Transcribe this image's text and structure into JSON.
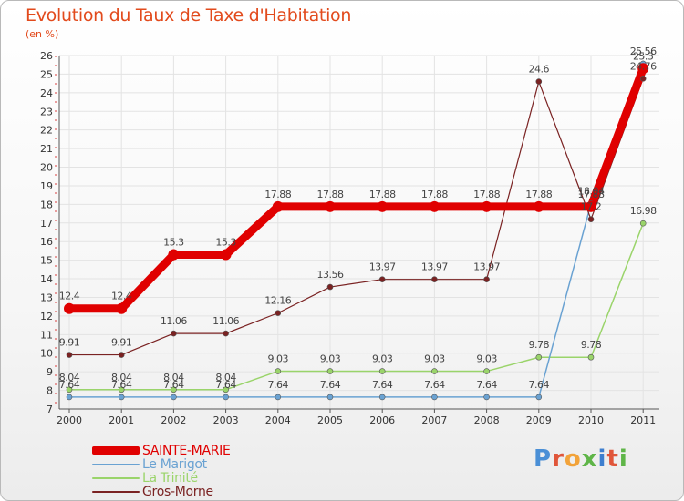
{
  "header": {
    "title": "Evolution du Taux de Taxe d'Habitation",
    "unit": "(en %)"
  },
  "logo": {
    "text": "Proxiti",
    "colors": [
      "#4a8fd6",
      "#e0563a",
      "#f2a33a",
      "#5fb548",
      "#3e7fcf",
      "#e0563a",
      "#5fb548"
    ]
  },
  "chart_data": {
    "type": "line",
    "title": "Evolution du Taux de Taxe d'Habitation",
    "ylabel": "(en %)",
    "xlabel": "",
    "ylim": [
      7,
      26
    ],
    "yticks": [
      7,
      8,
      9,
      10,
      11,
      12,
      13,
      14,
      15,
      16,
      17,
      18,
      19,
      20,
      21,
      22,
      23,
      24,
      25,
      26
    ],
    "x": [
      "2000",
      "2001",
      "2002",
      "2003",
      "2004",
      "2005",
      "2006",
      "2007",
      "2008",
      "2009",
      "2010",
      "2011"
    ],
    "grid": true,
    "legend_position": "bottom-left",
    "series": [
      {
        "name": "SAINTE-MARIE",
        "color": "#e00000",
        "width": 9,
        "values": [
          12.4,
          12.4,
          15.3,
          15.3,
          17.88,
          17.88,
          17.88,
          17.88,
          17.88,
          17.88,
          17.88,
          25.3
        ],
        "labels": [
          "12.4",
          "12.4",
          "15.3",
          "15.3",
          "17.88",
          "17.88",
          "17.88",
          "17.88",
          "17.88",
          "17.88",
          "17.88",
          "25.3"
        ]
      },
      {
        "name": "Le Marigot",
        "color": "#6aa2d2",
        "width": 1.5,
        "values": [
          7.64,
          7.64,
          7.64,
          7.64,
          7.64,
          7.64,
          7.64,
          7.64,
          7.64,
          7.64,
          18.04,
          25.56
        ],
        "labels": [
          "7.64",
          "7.64",
          "7.64",
          "7.64",
          "7.64",
          "7.64",
          "7.64",
          "7.64",
          "7.64",
          "7.64",
          "18.04",
          "25.56"
        ]
      },
      {
        "name": "La Trinité",
        "color": "#9ad46a",
        "width": 1.5,
        "values": [
          8.04,
          8.04,
          8.04,
          8.04,
          9.03,
          9.03,
          9.03,
          9.03,
          9.03,
          9.78,
          9.78,
          16.98
        ],
        "labels": [
          "8.04",
          "8.04",
          "8.04",
          "8.04",
          "9.03",
          "9.03",
          "9.03",
          "9.03",
          "9.03",
          "9.78",
          "9.78",
          "16.98"
        ]
      },
      {
        "name": "Gros-Morne",
        "color": "#7a2222",
        "width": 1.2,
        "values": [
          9.91,
          9.91,
          11.06,
          11.06,
          12.16,
          13.56,
          13.97,
          13.97,
          13.97,
          24.6,
          17.2,
          24.76
        ],
        "labels": [
          "9.91",
          "9.91",
          "11.06",
          "11.06",
          "12.16",
          "13.56",
          "13.97",
          "13.97",
          "13.97",
          "24.6",
          "17.2",
          "24.76"
        ]
      }
    ]
  }
}
